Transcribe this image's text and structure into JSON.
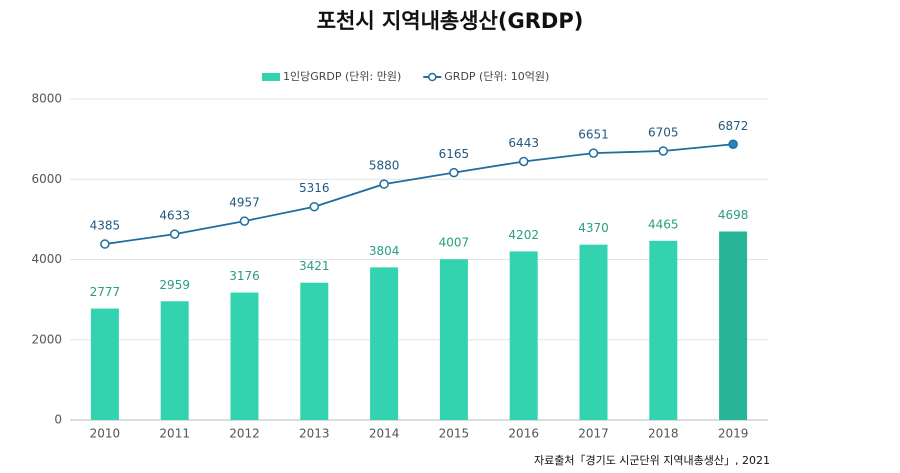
{
  "chart_data": {
    "type": "bar",
    "title": "포천시 지역내총생산(GRDP)",
    "source": "자료출처「경기도 시군단위 지역내총생산」, 2021",
    "categories": [
      "2010",
      "2011",
      "2012",
      "2013",
      "2014",
      "2015",
      "2016",
      "2017",
      "2018",
      "2019"
    ],
    "series": [
      {
        "name": "1인당GRDP (단위: 만원)",
        "type": "bar",
        "color": "#34d3b0",
        "label_color": "#2a9d84",
        "point_colors": [
          "#34d3b0",
          "#34d3b0",
          "#34d3b0",
          "#34d3b0",
          "#34d3b0",
          "#34d3b0",
          "#34d3b0",
          "#34d3b0",
          "#34d3b0",
          "#26b596"
        ],
        "values": [
          2777,
          2959,
          3176,
          3421,
          3804,
          4007,
          4202,
          4370,
          4465,
          4698
        ]
      },
      {
        "name": "GRDP (단위: 10억원)",
        "type": "line",
        "color": "#1f6e9c",
        "label_color": "#24587f",
        "marker_fills": [
          "#ffffff",
          "#ffffff",
          "#ffffff",
          "#ffffff",
          "#ffffff",
          "#ffffff",
          "#ffffff",
          "#ffffff",
          "#ffffff",
          "#2b82c4"
        ],
        "values": [
          4385,
          4633,
          4957,
          5316,
          5880,
          6165,
          6443,
          6651,
          6705,
          6872
        ]
      }
    ],
    "ylim": [
      0,
      8000
    ],
    "yticks": [
      0,
      2000,
      4000,
      6000,
      8000
    ],
    "grid": true,
    "legend": "top"
  }
}
